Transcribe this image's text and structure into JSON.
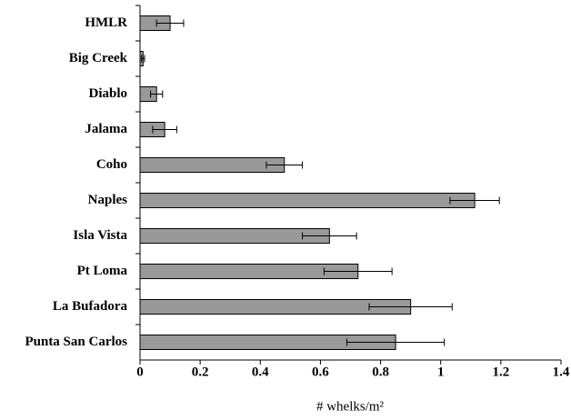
{
  "chart_data": {
    "type": "hbar",
    "categories": [
      "HMLR",
      "Big Creek",
      "Diablo",
      "Jalama",
      "Coho",
      "Naples",
      "Isla Vista",
      "Pt Loma",
      "La Bufadora",
      "Punta San Carlos"
    ],
    "values": [
      0.1,
      0.01,
      0.055,
      0.082,
      0.48,
      1.113,
      0.63,
      0.725,
      0.9,
      0.85
    ],
    "errors": [
      0.045,
      0.005,
      0.02,
      0.04,
      0.06,
      0.082,
      0.09,
      0.113,
      0.138,
      0.162
    ],
    "color": "#999999",
    "xlabel": "# whelks/m²",
    "xlim": [
      0,
      1.4
    ],
    "xticks": [
      0,
      0.2,
      0.4,
      0.6,
      0.8,
      1,
      1.2,
      1.4
    ]
  }
}
